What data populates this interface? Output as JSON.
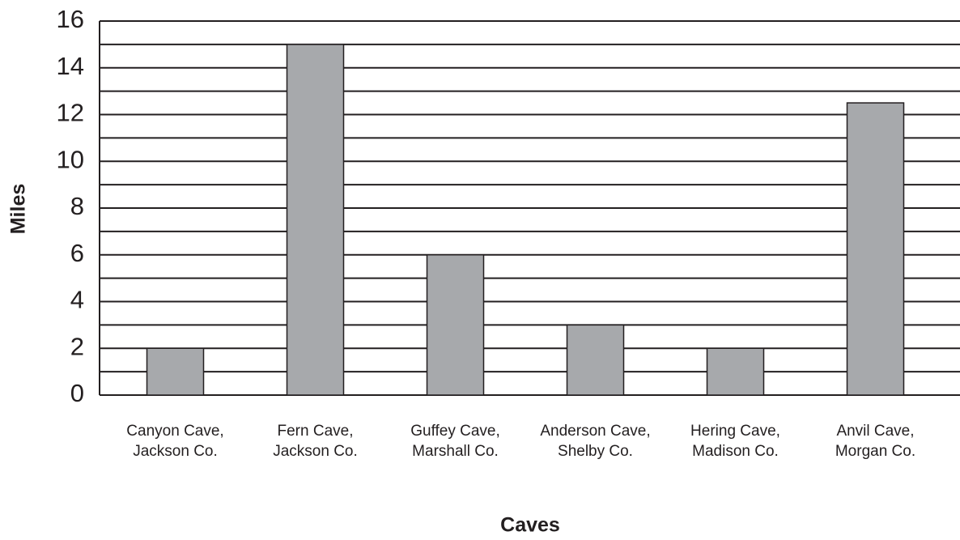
{
  "chart_data": {
    "type": "bar",
    "x_label": "Caves",
    "y_label": "Miles",
    "categories": [
      [
        "Canyon Cave,",
        "Jackson Co."
      ],
      [
        "Fern Cave,",
        "Jackson Co."
      ],
      [
        "Guffey Cave,",
        "Marshall Co."
      ],
      [
        "Anderson Cave,",
        "Shelby Co."
      ],
      [
        "Hering Cave,",
        "Madison Co."
      ],
      [
        "Anvil Cave,",
        "Morgan Co."
      ]
    ],
    "values": [
      2,
      15,
      6,
      3,
      2,
      12.5
    ],
    "color": "#a7a9ac",
    "ylim": [
      0,
      16
    ],
    "yticks": [
      0,
      2,
      4,
      6,
      8,
      10,
      12,
      14,
      16
    ],
    "minor_yticks": [
      1,
      3,
      5,
      7,
      9,
      11,
      13,
      15
    ],
    "grid": true
  }
}
